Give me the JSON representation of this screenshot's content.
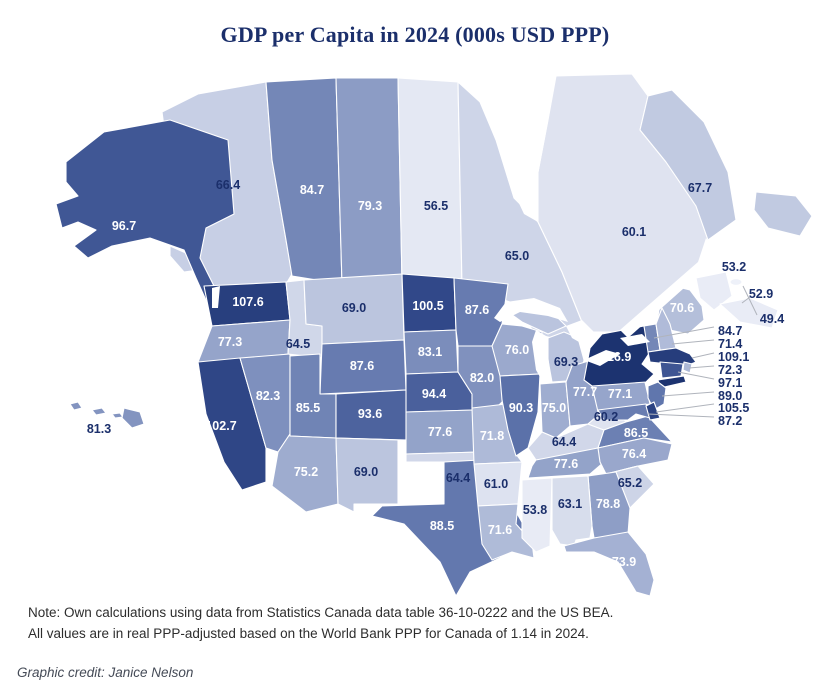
{
  "title": "GDP per Capita in 2024 (000s USD PPP)",
  "note": {
    "line1": "Note: Own calculations using data from Statistics Canada data table 36-10-0222 and the US BEA.",
    "line2": "All values are in real PPP-adjusted based on the World Bank PPP for Canada of 1.14 in 2024."
  },
  "credit": "Graphic credit: Janice Nelson",
  "colors": {
    "background": "#ffffff",
    "title_text": "#1b2f6b",
    "label_dark": "#1b2f6b",
    "label_light": "#ffffff",
    "region_border": "#ffffff",
    "leader_line": "#b0b4bc",
    "note_text": "#2d2d2d",
    "credit_text": "#454b57",
    "water": "#ffffff"
  },
  "color_scale": {
    "metric": "GDP per capita (000s USD PPP)",
    "stops": [
      [
        49,
        "#eff1f9"
      ],
      [
        62,
        "#dce1ef"
      ],
      [
        75,
        "#9fadd0"
      ],
      [
        90,
        "#5c72aa"
      ],
      [
        100,
        "#32498a"
      ],
      [
        117,
        "#1c3370"
      ]
    ]
  },
  "label_style": {
    "white_text_min_value": 70
  },
  "chart_data": {
    "type": "choropleth_map",
    "geography": "United States and Canada",
    "metric": "GDP per capita, 2024, thousands of USD (PPP-adjusted)",
    "regions": [
      {
        "code": "BC",
        "name": "British Columbia",
        "country": "Canada",
        "value": 66.4,
        "label": "66.4",
        "label_placement": "map"
      },
      {
        "code": "AB",
        "name": "Alberta",
        "country": "Canada",
        "value": 84.7,
        "label": "84.7",
        "label_placement": "map"
      },
      {
        "code": "SK",
        "name": "Saskatchewan",
        "country": "Canada",
        "value": 79.3,
        "label": "79.3",
        "label_placement": "map"
      },
      {
        "code": "MB",
        "name": "Manitoba",
        "country": "Canada",
        "value": 56.5,
        "label": "56.5",
        "label_placement": "map"
      },
      {
        "code": "ON",
        "name": "Ontario",
        "country": "Canada",
        "value": 65.0,
        "label": "65.0",
        "label_placement": "map"
      },
      {
        "code": "QC",
        "name": "Quebec",
        "country": "Canada",
        "value": 60.1,
        "label": "60.1",
        "label_placement": "map"
      },
      {
        "code": "NL",
        "name": "Newfoundland and Labrador",
        "country": "Canada",
        "value": 67.7,
        "label": "67.7",
        "label_placement": "map"
      },
      {
        "code": "NB",
        "name": "New Brunswick",
        "country": "Canada",
        "value": 53.2,
        "label": "53.2",
        "label_placement": "callout"
      },
      {
        "code": "NS",
        "name": "Nova Scotia",
        "country": "Canada",
        "value": 52.9,
        "label": "52.9",
        "label_placement": "callout"
      },
      {
        "code": "PE",
        "name": "Prince Edward Island",
        "country": "Canada",
        "value": 49.4,
        "label": "49.4",
        "label_placement": "callout"
      },
      {
        "code": "AK",
        "name": "Alaska",
        "country": "US",
        "value": 96.7,
        "label": "96.7",
        "label_placement": "map"
      },
      {
        "code": "HI",
        "name": "Hawaii",
        "country": "US",
        "value": 81.3,
        "label": "81.3",
        "label_placement": "map"
      },
      {
        "code": "WA",
        "name": "Washington",
        "country": "US",
        "value": 107.6,
        "label": "107.6",
        "label_placement": "map"
      },
      {
        "code": "OR",
        "name": "Oregon",
        "country": "US",
        "value": 77.3,
        "label": "77.3",
        "label_placement": "map"
      },
      {
        "code": "CA",
        "name": "California",
        "country": "US",
        "value": 102.7,
        "label": "102.7",
        "label_placement": "map"
      },
      {
        "code": "NV",
        "name": "Nevada",
        "country": "US",
        "value": 82.3,
        "label": "82.3",
        "label_placement": "map"
      },
      {
        "code": "ID",
        "name": "Idaho",
        "country": "US",
        "value": 64.5,
        "label": "64.5",
        "label_placement": "map"
      },
      {
        "code": "MT",
        "name": "Montana",
        "country": "US",
        "value": 69.0,
        "label": "69.0",
        "label_placement": "map"
      },
      {
        "code": "WY",
        "name": "Wyoming",
        "country": "US",
        "value": 87.6,
        "label": "87.6",
        "label_placement": "map"
      },
      {
        "code": "UT",
        "name": "Utah",
        "country": "US",
        "value": 85.5,
        "label": "85.5",
        "label_placement": "map"
      },
      {
        "code": "CO",
        "name": "Colorado",
        "country": "US",
        "value": 93.6,
        "label": "93.6",
        "label_placement": "map"
      },
      {
        "code": "AZ",
        "name": "Arizona",
        "country": "US",
        "value": 75.2,
        "label": "75.2",
        "label_placement": "map"
      },
      {
        "code": "NM",
        "name": "New Mexico",
        "country": "US",
        "value": 69.0,
        "label": "69.0",
        "label_placement": "map"
      },
      {
        "code": "ND",
        "name": "North Dakota",
        "country": "US",
        "value": 100.5,
        "label": "100.5",
        "label_placement": "map"
      },
      {
        "code": "SD",
        "name": "South Dakota",
        "country": "US",
        "value": 83.1,
        "label": "83.1",
        "label_placement": "map"
      },
      {
        "code": "NE",
        "name": "Nebraska",
        "country": "US",
        "value": 94.4,
        "label": "94.4",
        "label_placement": "map"
      },
      {
        "code": "KS",
        "name": "Kansas",
        "country": "US",
        "value": 77.6,
        "label": "77.6",
        "label_placement": "map"
      },
      {
        "code": "OK",
        "name": "Oklahoma",
        "country": "US",
        "value": 64.4,
        "label": "64.4",
        "label_placement": "map"
      },
      {
        "code": "TX",
        "name": "Texas",
        "country": "US",
        "value": 88.5,
        "label": "88.5",
        "label_placement": "map"
      },
      {
        "code": "MN",
        "name": "Minnesota",
        "country": "US",
        "value": 87.6,
        "label": "87.6",
        "label_placement": "map"
      },
      {
        "code": "IA",
        "name": "Iowa",
        "country": "US",
        "value": 82.0,
        "label": "82.0",
        "label_placement": "map"
      },
      {
        "code": "MO",
        "name": "Missouri",
        "country": "US",
        "value": 71.8,
        "label": "71.8",
        "label_placement": "map"
      },
      {
        "code": "AR",
        "name": "Arkansas",
        "country": "US",
        "value": 61.0,
        "label": "61.0",
        "label_placement": "map"
      },
      {
        "code": "LA",
        "name": "Louisiana",
        "country": "US",
        "value": 71.6,
        "label": "71.6",
        "label_placement": "map"
      },
      {
        "code": "WI",
        "name": "Wisconsin",
        "country": "US",
        "value": 76.0,
        "label": "76.0",
        "label_placement": "map"
      },
      {
        "code": "IL",
        "name": "Illinois",
        "country": "US",
        "value": 90.3,
        "label": "90.3",
        "label_placement": "map"
      },
      {
        "code": "MI",
        "name": "Michigan",
        "country": "US",
        "value": 69.3,
        "label": "69.3",
        "label_placement": "map"
      },
      {
        "code": "IN",
        "name": "Indiana",
        "country": "US",
        "value": 75.0,
        "label": "75.0",
        "label_placement": "map"
      },
      {
        "code": "OH",
        "name": "Ohio",
        "country": "US",
        "value": 77.7,
        "label": "77.7",
        "label_placement": "map"
      },
      {
        "code": "KY",
        "name": "Kentucky",
        "country": "US",
        "value": 64.4,
        "label": "64.4",
        "label_placement": "map"
      },
      {
        "code": "TN",
        "name": "Tennessee",
        "country": "US",
        "value": 77.6,
        "label": "77.6",
        "label_placement": "map"
      },
      {
        "code": "WV",
        "name": "West Virginia",
        "country": "US",
        "value": 60.2,
        "label": "60.2",
        "label_placement": "map"
      },
      {
        "code": "VA",
        "name": "Virginia",
        "country": "US",
        "value": 86.5,
        "label": "86.5",
        "label_placement": "map"
      },
      {
        "code": "NC",
        "name": "North Carolina",
        "country": "US",
        "value": 76.4,
        "label": "76.4",
        "label_placement": "map"
      },
      {
        "code": "SC",
        "name": "South Carolina",
        "country": "US",
        "value": 65.2,
        "label": "65.2",
        "label_placement": "map"
      },
      {
        "code": "GA",
        "name": "Georgia",
        "country": "US",
        "value": 78.8,
        "label": "78.8",
        "label_placement": "map"
      },
      {
        "code": "AL",
        "name": "Alabama",
        "country": "US",
        "value": 63.1,
        "label": "63.1",
        "label_placement": "map"
      },
      {
        "code": "MS",
        "name": "Mississippi",
        "country": "US",
        "value": 53.8,
        "label": "53.8",
        "label_placement": "map"
      },
      {
        "code": "FL",
        "name": "Florida",
        "country": "US",
        "value": 73.9,
        "label": "73.9",
        "label_placement": "map"
      },
      {
        "code": "PA",
        "name": "Pennsylvania",
        "country": "US",
        "value": 77.1,
        "label": "77.1",
        "label_placement": "map"
      },
      {
        "code": "NY",
        "name": "New York",
        "country": "US",
        "value": 116.9,
        "label": "116.9",
        "label_placement": "map"
      },
      {
        "code": "NJ",
        "name": "New Jersey",
        "country": "US",
        "value": 89.0,
        "label": "89.0",
        "label_placement": "callout"
      },
      {
        "code": "MD",
        "name": "Maryland",
        "country": "US",
        "value": 87.2,
        "label": "87.2",
        "label_placement": "callout"
      },
      {
        "code": "DE",
        "name": "Delaware",
        "country": "US",
        "value": 105.5,
        "label": "105.5",
        "label_placement": "callout"
      },
      {
        "code": "ME",
        "name": "Maine",
        "country": "US",
        "value": 70.6,
        "label": "70.6",
        "label_placement": "map"
      },
      {
        "code": "VT",
        "name": "Vermont",
        "country": "US",
        "value": 84.7,
        "label": "84.7",
        "label_placement": "callout"
      },
      {
        "code": "NH",
        "name": "New Hampshire",
        "country": "US",
        "value": 71.4,
        "label": "71.4",
        "label_placement": "callout"
      },
      {
        "code": "MA",
        "name": "Massachusetts",
        "country": "US",
        "value": 109.1,
        "label": "109.1",
        "label_placement": "callout"
      },
      {
        "code": "RI",
        "name": "Rhode Island",
        "country": "US",
        "value": 72.3,
        "label": "72.3",
        "label_placement": "callout"
      },
      {
        "code": "CT",
        "name": "Connecticut",
        "country": "US",
        "value": 97.1,
        "label": "97.1",
        "label_placement": "callout"
      }
    ]
  }
}
